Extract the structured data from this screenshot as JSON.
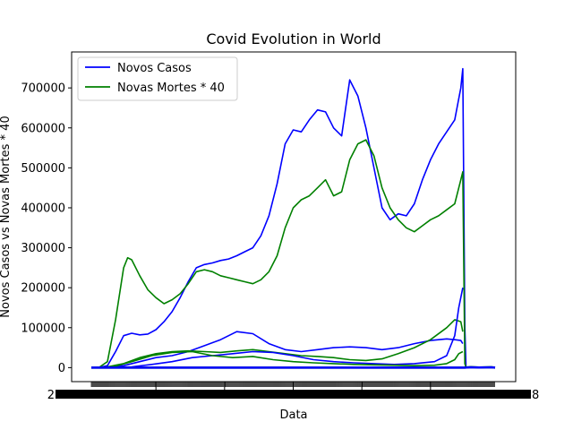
{
  "chart_data": {
    "type": "line",
    "title": "Covid Evolution in World",
    "xlabel": "Data",
    "ylabel": "Novos Casos vs Novas Mortes * 40",
    "ylim": [
      -35000,
      790000
    ],
    "yticks": [
      0,
      100000,
      200000,
      300000,
      400000,
      500000,
      600000,
      700000
    ],
    "ytick_labels": [
      "0",
      "100000",
      "200000",
      "300000",
      "400000",
      "500000",
      "600000",
      "700000"
    ],
    "x_index_range": [
      0,
      1000
    ],
    "x_note_visible": "x tick labels are overlapping dates; only fragments '2' and '8' are legible at the ends",
    "x_edge_labels": [
      "2",
      "8"
    ],
    "legend": {
      "position": "top-left",
      "entries": [
        {
          "name": "Novos Casos",
          "color": "#0000ff"
        },
        {
          "name": "Novas Mortes * 40",
          "color": "#008000"
        }
      ]
    },
    "grid": false,
    "series": [
      {
        "name": "Novos Casos",
        "color": "#0000ff",
        "x": [
          0,
          20,
          40,
          60,
          80,
          100,
          120,
          140,
          160,
          180,
          200,
          220,
          240,
          260,
          280,
          300,
          320,
          340,
          360,
          380,
          400,
          420,
          440,
          460,
          480,
          500,
          520,
          540,
          560,
          580,
          600,
          620,
          640,
          660,
          680,
          700,
          720,
          740,
          760,
          780,
          800,
          820,
          840,
          860,
          880,
          900,
          915,
          920,
          925,
          928
        ],
        "values": [
          0,
          500,
          5000,
          40000,
          80000,
          86000,
          82000,
          84000,
          95000,
          115000,
          140000,
          175000,
          215000,
          250000,
          258000,
          262000,
          268000,
          272000,
          280000,
          290000,
          300000,
          330000,
          380000,
          460000,
          560000,
          595000,
          590000,
          620000,
          645000,
          640000,
          600000,
          580000,
          720000,
          680000,
          600000,
          500000,
          400000,
          370000,
          385000,
          380000,
          410000,
          470000,
          520000,
          560000,
          590000,
          620000,
          700000,
          748000,
          100000,
          0
        ]
      },
      {
        "name": "Novas Mortes * 40",
        "color": "#008000",
        "x": [
          0,
          20,
          40,
          60,
          80,
          90,
          100,
          120,
          140,
          160,
          180,
          200,
          220,
          240,
          260,
          280,
          300,
          320,
          340,
          360,
          380,
          400,
          420,
          440,
          460,
          480,
          500,
          520,
          540,
          560,
          580,
          600,
          620,
          640,
          660,
          680,
          700,
          720,
          740,
          760,
          780,
          800,
          820,
          840,
          860,
          880,
          900,
          915,
          920,
          925,
          928
        ],
        "values": [
          0,
          1000,
          15000,
          120000,
          250000,
          275000,
          270000,
          230000,
          195000,
          175000,
          160000,
          170000,
          185000,
          210000,
          240000,
          245000,
          240000,
          230000,
          225000,
          220000,
          215000,
          210000,
          220000,
          240000,
          280000,
          350000,
          400000,
          420000,
          430000,
          450000,
          470000,
          430000,
          440000,
          520000,
          560000,
          570000,
          530000,
          450000,
          400000,
          370000,
          350000,
          340000,
          355000,
          370000,
          380000,
          395000,
          410000,
          470000,
          490000,
          10000,
          0
        ]
      },
      {
        "name": "Novos Casos",
        "color": "#0000ff",
        "x": [
          0,
          40,
          80,
          120,
          160,
          200,
          240,
          280,
          320,
          360,
          400,
          440,
          480,
          520,
          560,
          600,
          640,
          680,
          720,
          760,
          800,
          840,
          880,
          900,
          915,
          920
        ],
        "values": [
          0,
          1000,
          5000,
          15000,
          25000,
          30000,
          40000,
          55000,
          70000,
          90000,
          85000,
          60000,
          45000,
          40000,
          45000,
          50000,
          52000,
          50000,
          45000,
          50000,
          60000,
          68000,
          72000,
          70000,
          68000,
          60000
        ]
      },
      {
        "name": "Novas Mortes * 40",
        "color": "#008000",
        "x": [
          0,
          40,
          80,
          120,
          160,
          200,
          240,
          280,
          320,
          360,
          400,
          440,
          480,
          520,
          560,
          600,
          640,
          680,
          720,
          760,
          800,
          840,
          880,
          900,
          915,
          920
        ],
        "values": [
          0,
          2000,
          10000,
          25000,
          35000,
          40000,
          42000,
          40000,
          38000,
          42000,
          45000,
          40000,
          35000,
          30000,
          28000,
          25000,
          20000,
          18000,
          22000,
          35000,
          50000,
          70000,
          100000,
          120000,
          115000,
          90000
        ]
      },
      {
        "name": "Novos Casos",
        "color": "#0000ff",
        "x": [
          0,
          50,
          100,
          150,
          200,
          250,
          300,
          350,
          400,
          450,
          500,
          550,
          600,
          650,
          700,
          750,
          800,
          850,
          880,
          900,
          910,
          920
        ],
        "values": [
          0,
          500,
          2000,
          8000,
          15000,
          25000,
          30000,
          35000,
          40000,
          38000,
          30000,
          20000,
          15000,
          12000,
          10000,
          8000,
          10000,
          15000,
          30000,
          80000,
          150000,
          200000
        ]
      },
      {
        "name": "Novas Mortes * 40",
        "color": "#008000",
        "x": [
          0,
          50,
          100,
          150,
          200,
          250,
          300,
          350,
          400,
          450,
          500,
          550,
          600,
          650,
          700,
          750,
          800,
          850,
          880,
          900,
          910,
          920
        ],
        "values": [
          0,
          1000,
          15000,
          30000,
          38000,
          40000,
          30000,
          25000,
          28000,
          20000,
          15000,
          12000,
          10000,
          8000,
          7000,
          6000,
          5000,
          6000,
          10000,
          20000,
          35000,
          40000
        ]
      },
      {
        "name": "Novas Mortes * 40",
        "color": "#008000",
        "x": [
          0,
          920,
          925,
          940,
          960,
          990,
          1000
        ],
        "values": [
          0,
          0,
          0,
          1500,
          500,
          1200,
          0
        ]
      },
      {
        "name": "Novos Casos",
        "color": "#0000ff",
        "x": [
          0,
          920,
          925,
          940,
          960,
          990,
          1000
        ],
        "values": [
          0,
          0,
          0,
          800,
          300,
          900,
          0
        ]
      }
    ]
  }
}
